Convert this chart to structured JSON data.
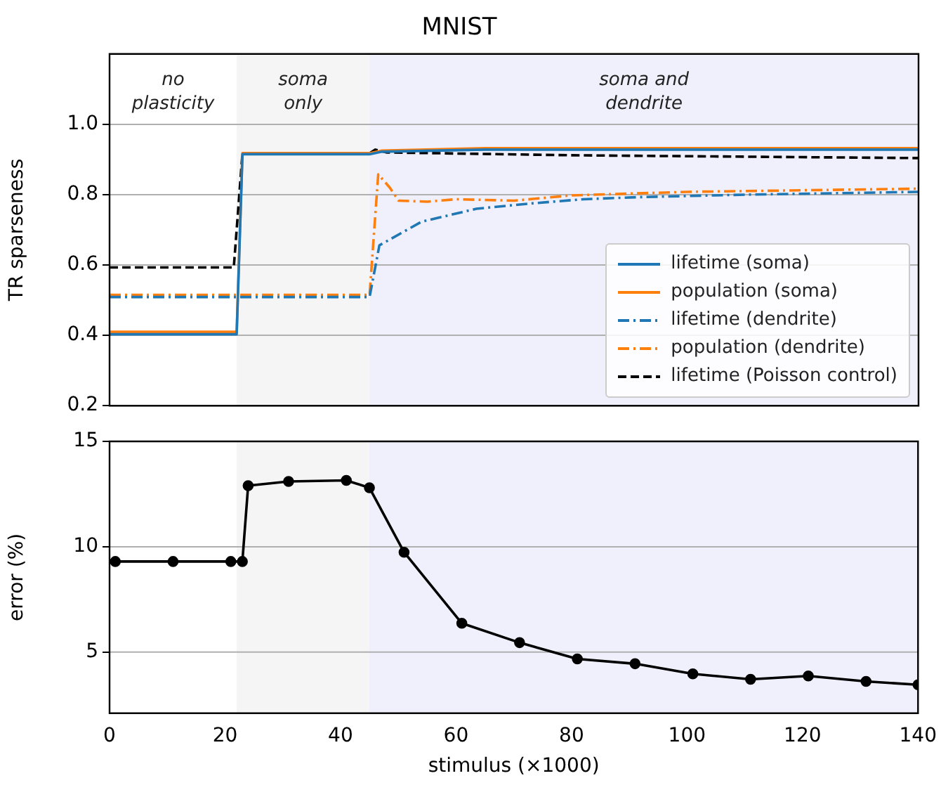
{
  "chart_data": [
    {
      "type": "line",
      "title": "MNIST",
      "ylabel": "TR sparseness",
      "xlim": [
        0,
        140
      ],
      "xticks": [
        0,
        20,
        40,
        60,
        80,
        100,
        120,
        140
      ],
      "ylim": [
        0.2,
        1.2
      ],
      "yticks": [
        0.2,
        0.4,
        0.6,
        0.8,
        {
          "value": 1.0,
          "label": "1.0"
        }
      ],
      "tick_labels": "y",
      "grid": "y",
      "legend": "bottom right",
      "marker": "none",
      "annotations": [
        "no\nplasticity"
      ],
      "bands": [
        {
          "axis": "x",
          "from": 22,
          "to": 45,
          "label": "soma\nonly",
          "color": "#f5f5f5"
        },
        {
          "axis": "x",
          "from": 45,
          "to": 140,
          "label": "soma and\ndendrite",
          "color": "#f0f0fc"
        }
      ],
      "series": [
        {
          "name": "lifetime (soma)",
          "color": "#1f77b4",
          "line_style": "solid",
          "x": [
            0,
            22,
            23,
            45,
            47,
            65,
            140
          ],
          "values": [
            0.403,
            0.403,
            0.915,
            0.915,
            0.922,
            0.928,
            0.928
          ]
        },
        {
          "name": "population (soma)",
          "color": "#ff7f0e",
          "line_style": "solid",
          "x": [
            0,
            22,
            23,
            45,
            47,
            65,
            140
          ],
          "values": [
            0.41,
            0.41,
            0.918,
            0.918,
            0.925,
            0.932,
            0.932
          ]
        },
        {
          "name": "lifetime (dendrite)",
          "color": "#1f77b4",
          "line_style": "dashdot",
          "x": [
            0,
            45,
            46.7,
            54,
            63.5,
            72.9,
            82,
            91.6,
            110,
            140
          ],
          "values": [
            0.509,
            0.509,
            0.656,
            0.723,
            0.76,
            0.775,
            0.787,
            0.793,
            0.8,
            0.808
          ]
        },
        {
          "name": "population (dendrite)",
          "color": "#ff7f0e",
          "line_style": "dashdot",
          "x": [
            0,
            45,
            46.5,
            48.5,
            50,
            55,
            60,
            70,
            80,
            100,
            140
          ],
          "values": [
            0.515,
            0.515,
            0.858,
            0.82,
            0.783,
            0.78,
            0.787,
            0.783,
            0.798,
            0.808,
            0.817
          ]
        },
        {
          "name": "lifetime (Poisson control)",
          "color": "#000000",
          "line_style": "dashed",
          "x": [
            0,
            21.5,
            23,
            45,
            46,
            48,
            60,
            80,
            140
          ],
          "values": [
            0.593,
            0.593,
            0.918,
            0.918,
            0.928,
            0.92,
            0.917,
            0.912,
            0.904
          ]
        }
      ]
    },
    {
      "type": "line",
      "xlabel": "stimulus (×1000)",
      "ylabel": "error (%)",
      "xlim": [
        0,
        140
      ],
      "xticks": [
        0,
        20,
        40,
        60,
        80,
        100,
        120,
        140
      ],
      "ylim": [
        2.1,
        15
      ],
      "yticks": [
        5,
        10,
        15
      ],
      "grid": "y",
      "legend": false,
      "marker": "circle",
      "bands": [
        {
          "axis": "x",
          "from": 22,
          "to": 45,
          "color": "#f5f5f5"
        },
        {
          "axis": "x",
          "from": 45,
          "to": 140,
          "color": "#f0f0fc"
        }
      ],
      "series": [
        {
          "color": "#000000",
          "line_style": "solid",
          "x": [
            1,
            11,
            21,
            23,
            24,
            31,
            41,
            45,
            51,
            61,
            71,
            81,
            91,
            101,
            111,
            121,
            131,
            140
          ],
          "values": [
            9.3,
            9.3,
            9.3,
            9.3,
            12.9,
            13.1,
            13.15,
            12.8,
            9.74,
            6.37,
            5.45,
            4.68,
            4.45,
            3.97,
            3.71,
            3.87,
            3.61,
            3.45
          ]
        }
      ]
    }
  ]
}
